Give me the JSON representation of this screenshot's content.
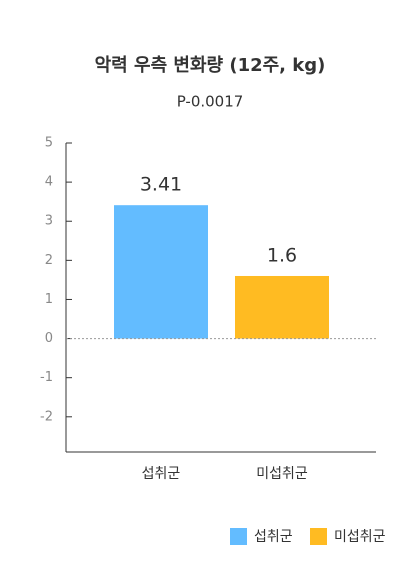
{
  "chart_data": {
    "type": "bar",
    "title": "악력 우측 변화량 (12주, kg)",
    "subtitle": "P-0.0017",
    "categories": [
      "섭취군",
      "미섭취군"
    ],
    "values": [
      3.41,
      1.6
    ],
    "colors": [
      "#63bcff",
      "#ffbb22"
    ],
    "ylim": [
      -2.9,
      5
    ],
    "yticks": [
      5,
      4,
      3,
      2,
      1,
      0,
      -1,
      -2
    ],
    "legend": "bottom-right"
  }
}
